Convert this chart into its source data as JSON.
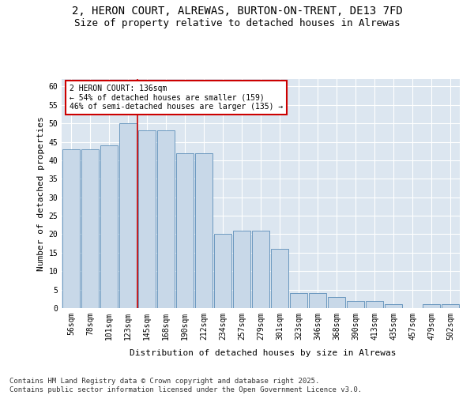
{
  "title_line1": "2, HERON COURT, ALREWAS, BURTON-ON-TRENT, DE13 7FD",
  "title_line2": "Size of property relative to detached houses in Alrewas",
  "xlabel": "Distribution of detached houses by size in Alrewas",
  "ylabel": "Number of detached properties",
  "categories": [
    "56sqm",
    "78sqm",
    "101sqm",
    "123sqm",
    "145sqm",
    "168sqm",
    "190sqm",
    "212sqm",
    "234sqm",
    "257sqm",
    "279sqm",
    "301sqm",
    "323sqm",
    "346sqm",
    "368sqm",
    "390sqm",
    "413sqm",
    "435sqm",
    "457sqm",
    "479sqm",
    "502sqm"
  ],
  "values": [
    43,
    43,
    44,
    50,
    48,
    48,
    42,
    42,
    20,
    21,
    21,
    16,
    4,
    4,
    3,
    2,
    2,
    1,
    0,
    1,
    1
  ],
  "bar_color": "#c8d8e8",
  "bar_edge_color": "#5b8db8",
  "vline_color": "#cc0000",
  "vline_x": 3.5,
  "annotation_text": "2 HERON COURT: 136sqm\n← 54% of detached houses are smaller (159)\n46% of semi-detached houses are larger (135) →",
  "annotation_box_color": "#ffffff",
  "annotation_box_edge": "#cc0000",
  "ylim": [
    0,
    62
  ],
  "yticks": [
    0,
    5,
    10,
    15,
    20,
    25,
    30,
    35,
    40,
    45,
    50,
    55,
    60
  ],
  "bg_color": "#dce6f0",
  "grid_color": "#ffffff",
  "footer_text": "Contains HM Land Registry data © Crown copyright and database right 2025.\nContains public sector information licensed under the Open Government Licence v3.0.",
  "title_fontsize": 10,
  "subtitle_fontsize": 9,
  "axis_label_fontsize": 8,
  "tick_fontsize": 7,
  "annotation_fontsize": 7,
  "footer_fontsize": 6.5
}
